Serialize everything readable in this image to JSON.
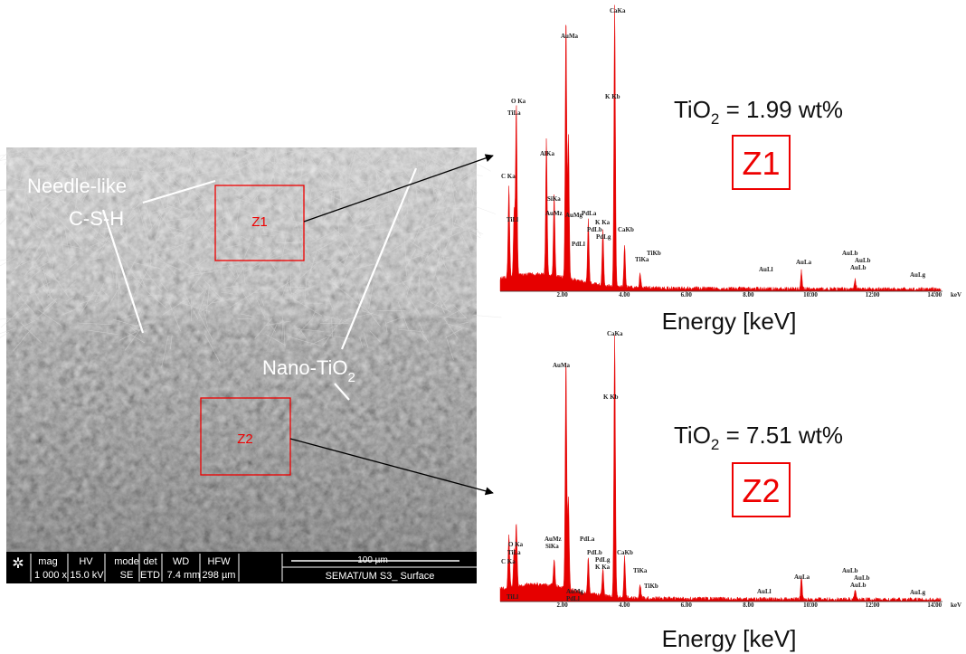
{
  "sem_image": {
    "needle_label": [
      "Needle-like",
      "C-S-H"
    ],
    "nano_label": {
      "text": "Nano-TiO",
      "sub": "2"
    },
    "zones": [
      "Z1",
      "Z2"
    ],
    "info_bar": {
      "headers": [
        "mag",
        "HV",
        "mode",
        "det",
        "WD",
        "HFW"
      ],
      "values": [
        "1 000 x",
        "15.0 kV",
        "SE",
        "ETD",
        "7.4 mm",
        "298 µm"
      ],
      "scale": "100 µm",
      "caption": "SEMAT/UM S3_ Surface"
    }
  },
  "spectra": [
    {
      "result": {
        "prefix": "TiO",
        "sub": "2",
        "suffix": " = 1.99 wt%"
      },
      "zone": "Z1",
      "x_label": "Energy [keV]",
      "xticks": [
        "2.00",
        "4.00",
        "6.00",
        "8.00",
        "10.00",
        "12.00",
        "14.00"
      ],
      "x_unit": "keV",
      "peaks": [
        "O Ka",
        "TiLa",
        "C Ka",
        "TiLl",
        "AlKa",
        "SiKa",
        "AuMz",
        "AuMg",
        "AuMa",
        "CaKa",
        "K Kb",
        "PdLa",
        "K Ka",
        "PdLb",
        "PdLg",
        "PdLl",
        "CaKb",
        "TiKb",
        "TiKa",
        "AuLl",
        "AuLa",
        "AuLb",
        "AuLb",
        "AuLb",
        "AuLg"
      ]
    },
    {
      "result": {
        "prefix": "TiO",
        "sub": "2",
        "suffix": " = 7.51 wt%"
      },
      "zone": "Z2",
      "x_label": "Energy [keV]",
      "xticks": [
        "2.00",
        "4.00",
        "6.00",
        "8.00",
        "10.00",
        "12.00",
        "14.00"
      ],
      "x_unit": "keV",
      "peaks": [
        "O Ka",
        "TiLa",
        "C Ka",
        "TiLl",
        "AuMz",
        "SiKa",
        "AuMg",
        "PdLl",
        "AuMa",
        "CaKa",
        "K Kb",
        "PdLa",
        "PdLb",
        "PdLg",
        "K Ka",
        "CaKb",
        "TiKa",
        "TiKb",
        "AuLl",
        "AuLa",
        "AuLb",
        "AuLb",
        "AuLb",
        "AuLg"
      ]
    }
  ]
}
